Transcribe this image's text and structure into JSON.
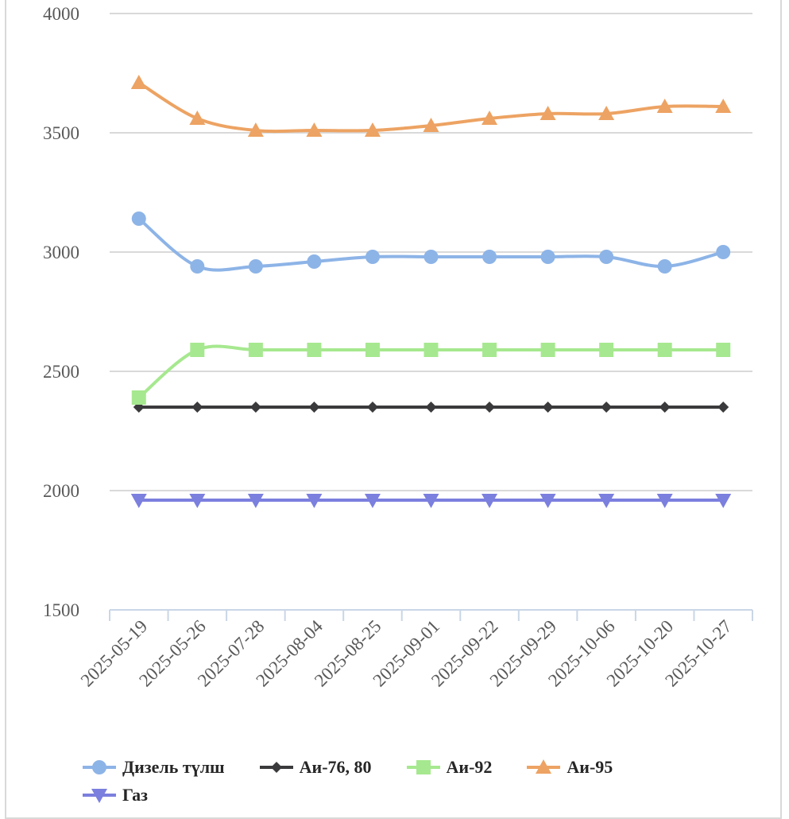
{
  "chart_data": {
    "type": "line",
    "title": "",
    "xlabel": "",
    "ylabel": "",
    "ylim": [
      1500,
      4000
    ],
    "yticks": [
      1500,
      2000,
      2500,
      3000,
      3500,
      4000
    ],
    "grid": true,
    "legend_position": "bottom",
    "categories": [
      "2025-05-19",
      "2025-05-26",
      "2025-07-28",
      "2025-08-04",
      "2025-08-25",
      "2025-09-01",
      "2025-09-22",
      "2025-09-29",
      "2025-10-06",
      "2025-10-20",
      "2025-10-27"
    ],
    "series": [
      {
        "name": "Дизель түлш",
        "color": "#8db4e7",
        "marker": "circle",
        "values": [
          3140,
          2940,
          2940,
          2960,
          2980,
          2980,
          2980,
          2980,
          2980,
          2940,
          3000
        ]
      },
      {
        "name": "Аи-76, 80",
        "color": "#3a3a3c",
        "marker": "diamond",
        "values": [
          2350,
          2350,
          2350,
          2350,
          2350,
          2350,
          2350,
          2350,
          2350,
          2350,
          2350
        ]
      },
      {
        "name": "Аи-92",
        "color": "#a6e88f",
        "marker": "square",
        "values": [
          2390,
          2590,
          2590,
          2590,
          2590,
          2590,
          2590,
          2590,
          2590,
          2590,
          2590
        ]
      },
      {
        "name": "Аи-95",
        "color": "#eda363",
        "marker": "triangle-up",
        "values": [
          3710,
          3560,
          3510,
          3510,
          3510,
          3530,
          3560,
          3580,
          3580,
          3610,
          3610
        ]
      },
      {
        "name": "Газ",
        "color": "#7b7fde",
        "marker": "triangle-down",
        "values": [
          1960,
          1960,
          1960,
          1960,
          1960,
          1960,
          1960,
          1960,
          1960,
          1960,
          1960
        ]
      }
    ]
  }
}
